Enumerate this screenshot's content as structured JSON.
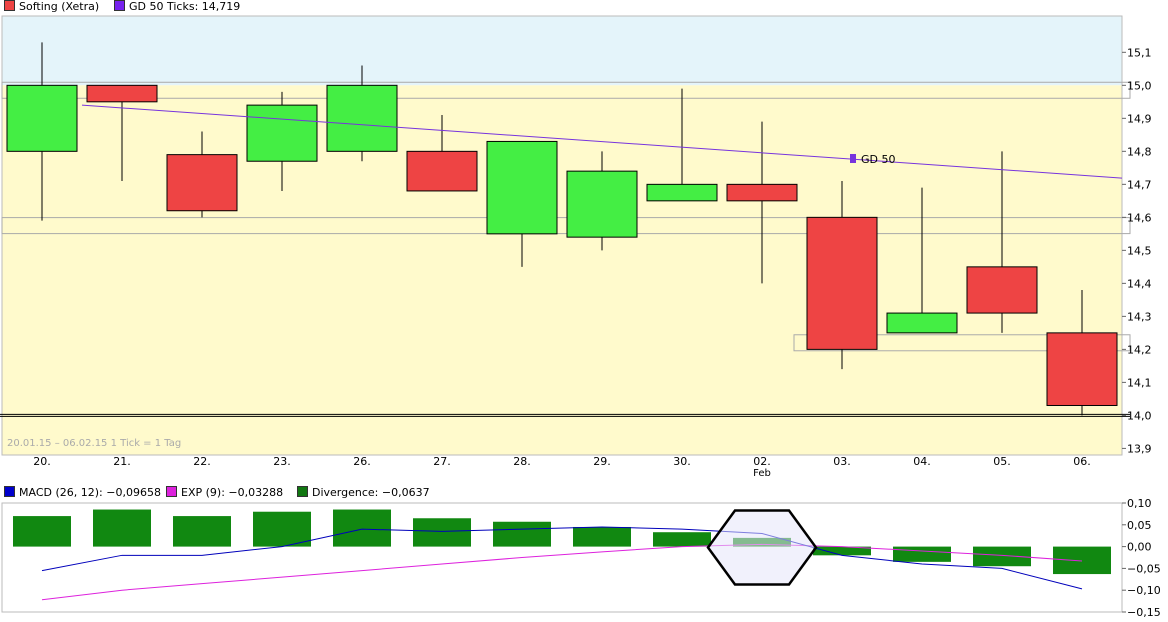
{
  "legend_top": [
    {
      "label": "Softing (Xetra)",
      "color": "#ee4444",
      "icon": "red-square-icon"
    },
    {
      "label": "GD 50 Ticks: 14,719",
      "color": "#7722ee",
      "icon": "purple-square-icon"
    }
  ],
  "legend_bottom": [
    {
      "label": "MACD (26, 12): −0,09658",
      "color": "#0000cc",
      "icon": "blue-square-icon"
    },
    {
      "label": "EXP (9): −0,03288",
      "color": "#dd22dd",
      "icon": "magenta-square-icon"
    },
    {
      "label": "Divergence: −0,0637",
      "color": "#117711",
      "icon": "green-square-icon"
    }
  ],
  "period_label": "20.01.15 – 06.02.15   1 Tick = 1 Tag",
  "gd50_label": "GD 50",
  "colors": {
    "up": "#44ee44",
    "down": "#ee4444",
    "gd50": "#7733dd",
    "macd": "#0000bb",
    "exp": "#dd22dd",
    "divergence": "#118811",
    "zone_upper": "#e4f4fa",
    "zone_lower": "#fffacc"
  },
  "chart_data": [
    {
      "type": "candlestick",
      "series_name": "Softing (Xetra)",
      "categories": [
        "20.",
        "21.",
        "22.",
        "23.",
        "26.",
        "27.",
        "28.",
        "29.",
        "30.",
        "02.",
        "03.",
        "04.",
        "05.",
        "06."
      ],
      "x_sublabels": {
        "02.": "Feb"
      },
      "ohlc": [
        {
          "o": 14.8,
          "h": 15.13,
          "l": 14.59,
          "c": 15.0
        },
        {
          "o": 15.0,
          "h": 15.0,
          "l": 14.71,
          "c": 14.95
        },
        {
          "o": 14.79,
          "h": 14.86,
          "l": 14.6,
          "c": 14.62
        },
        {
          "o": 14.77,
          "h": 14.98,
          "l": 14.68,
          "c": 14.94
        },
        {
          "o": 14.8,
          "h": 15.06,
          "l": 14.77,
          "c": 15.0
        },
        {
          "o": 14.8,
          "h": 14.91,
          "l": 14.68,
          "c": 14.68
        },
        {
          "o": 14.55,
          "h": 14.83,
          "l": 14.45,
          "c": 14.83
        },
        {
          "o": 14.54,
          "h": 14.8,
          "l": 14.5,
          "c": 14.74
        },
        {
          "o": 14.65,
          "h": 14.99,
          "l": 14.65,
          "c": 14.7
        },
        {
          "o": 14.7,
          "h": 14.89,
          "l": 14.4,
          "c": 14.65
        },
        {
          "o": 14.6,
          "h": 14.71,
          "l": 14.14,
          "c": 14.2
        },
        {
          "o": 14.25,
          "h": 14.69,
          "l": 14.25,
          "c": 14.31
        },
        {
          "o": 14.45,
          "h": 14.8,
          "l": 14.25,
          "c": 14.31
        },
        {
          "o": 14.25,
          "h": 14.38,
          "l": 14.0,
          "c": 14.03
        }
      ],
      "gd50": {
        "start": 14.94,
        "end": 14.719
      },
      "zone_split": 15.0,
      "highlight_levels": [
        14.985,
        14.575,
        14.22
      ],
      "baseline": 14.0,
      "y_ticks": [
        "15,1",
        "15,0",
        "14,9",
        "14,8",
        "14,7",
        "14,6",
        "14,5",
        "14,4",
        "14,3",
        "14,2",
        "14,1",
        "14,0",
        "13,9"
      ],
      "y_tick_values": [
        15.1,
        15.0,
        14.9,
        14.8,
        14.7,
        14.6,
        14.5,
        14.4,
        14.3,
        14.2,
        14.1,
        14.0,
        13.9
      ],
      "ylim": [
        13.88,
        15.21
      ]
    },
    {
      "type": "bar+line",
      "title": "MACD",
      "categories": [
        "20.",
        "21.",
        "22.",
        "23.",
        "26.",
        "27.",
        "28.",
        "29.",
        "30.",
        "02.",
        "03.",
        "04.",
        "05.",
        "06."
      ],
      "series": [
        {
          "name": "Divergence",
          "type": "bar",
          "values": [
            0.07,
            0.085,
            0.07,
            0.08,
            0.085,
            0.065,
            0.057,
            0.045,
            0.033,
            0.02,
            -0.02,
            -0.035,
            -0.045,
            -0.063
          ]
        },
        {
          "name": "MACD (26, 12)",
          "type": "line",
          "values": [
            -0.055,
            -0.02,
            -0.02,
            0.0,
            0.04,
            0.035,
            0.04,
            0.045,
            0.04,
            0.03,
            -0.02,
            -0.04,
            -0.05,
            -0.097
          ]
        },
        {
          "name": "EXP (9)",
          "type": "line",
          "values": [
            -0.122,
            -0.1,
            -0.085,
            -0.07,
            -0.055,
            -0.04,
            -0.025,
            -0.012,
            0.0,
            0.005,
            0.0,
            -0.01,
            -0.02,
            -0.033
          ]
        }
      ],
      "y_ticks": [
        "0,10",
        "0,05",
        "0,00",
        "−0,05",
        "−0,10",
        "−0,15"
      ],
      "y_tick_values": [
        0.1,
        0.05,
        0.0,
        -0.05,
        -0.1,
        -0.15
      ],
      "ylim": [
        -0.15,
        0.1
      ],
      "marker": {
        "shape": "hexagon",
        "category": "02."
      }
    }
  ]
}
